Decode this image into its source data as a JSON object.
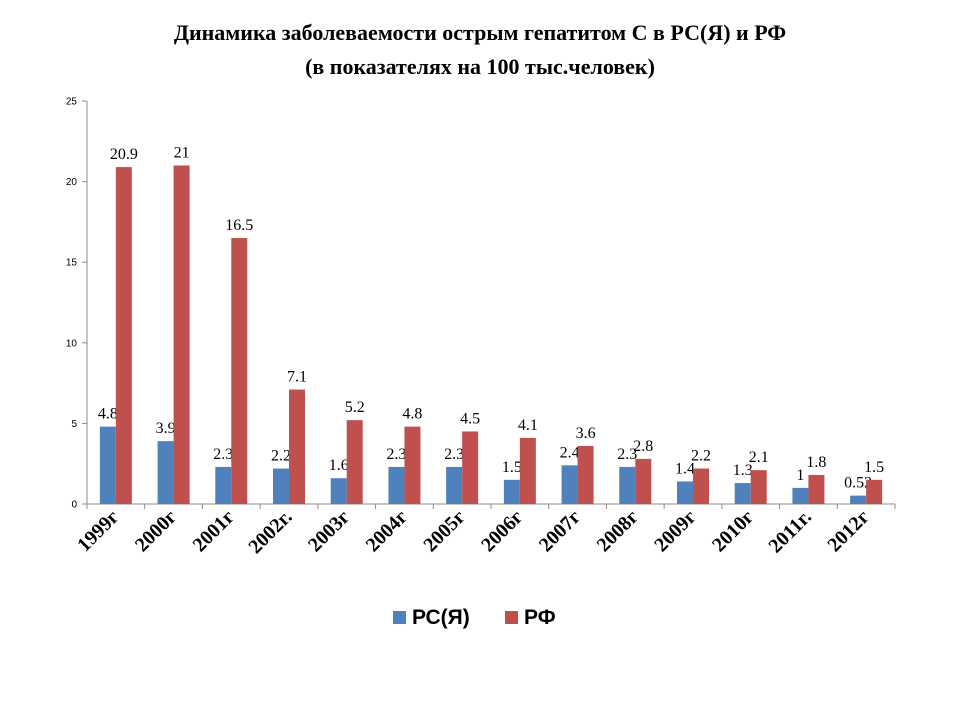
{
  "chart_data": {
    "type": "bar",
    "title": "Динамика заболеваемости острым гепатитом С в РС(Я) и РФ",
    "subtitle": "(в показателях на 100 тыс.человек)",
    "categories": [
      "1999г",
      "2000г",
      "2001г",
      "2002г.",
      "2003г",
      "2004г",
      "2005г",
      "2006г",
      "2007г",
      "2008г",
      "2009г",
      "2010г",
      "2011г.",
      "2012г"
    ],
    "series": [
      {
        "name": "РС(Я)",
        "color": "#4F81BD",
        "values": [
          4.8,
          3.9,
          2.3,
          2.2,
          1.6,
          2.3,
          2.3,
          1.5,
          2.4,
          2.3,
          1.4,
          1.3,
          1,
          0.52
        ]
      },
      {
        "name": "РФ",
        "color": "#C0504D",
        "values": [
          20.9,
          21,
          16.5,
          7.1,
          5.2,
          4.8,
          4.5,
          4.1,
          3.6,
          2.8,
          2.2,
          2.1,
          1.8,
          1.5
        ]
      }
    ],
    "ylim": [
      0,
      25
    ],
    "yticks": [
      0,
      5,
      10,
      15,
      20,
      25
    ],
    "legend": "bottom",
    "grid": false
  }
}
